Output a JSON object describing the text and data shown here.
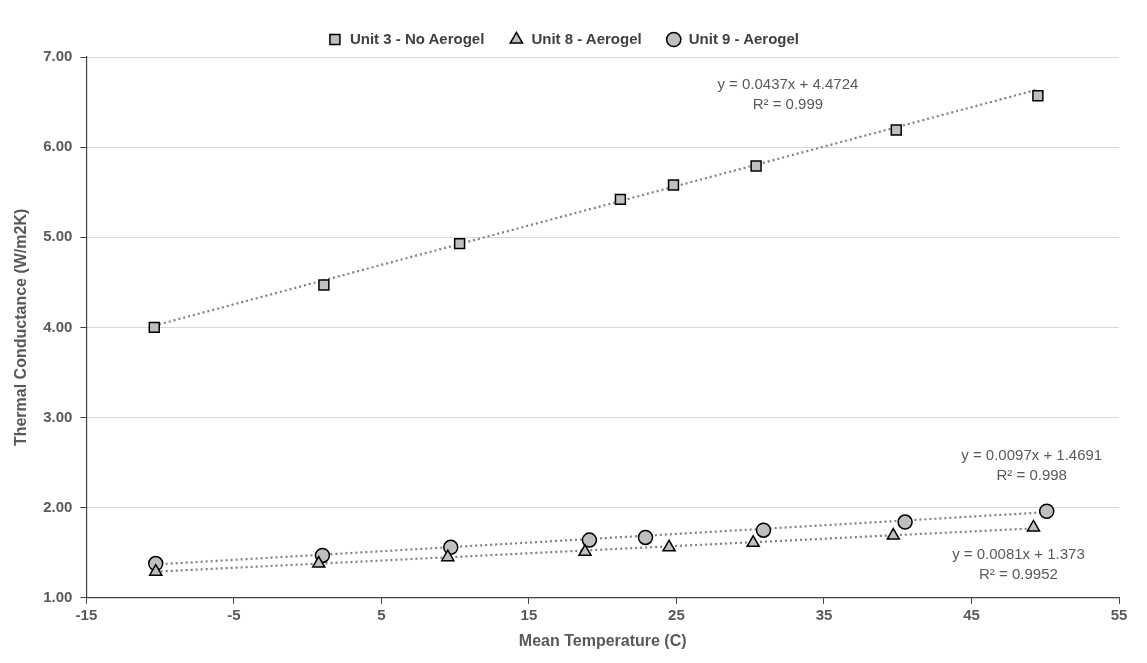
{
  "chart_data": {
    "type": "scatter",
    "xlabel": "Mean Temperature (C)",
    "ylabel": "Thermal Conductance (W/m2K)",
    "xlim": [
      -15,
      55
    ],
    "xticks": [
      -15,
      -5,
      5,
      15,
      25,
      35,
      45,
      55
    ],
    "ylim": [
      1,
      7
    ],
    "yticks": [
      {
        "value": 1,
        "label": "1.00"
      },
      {
        "value": 2,
        "label": "2.00"
      },
      {
        "value": 3,
        "label": "3.00"
      },
      {
        "value": 4,
        "label": "4.00"
      },
      {
        "value": 5,
        "label": "5.00"
      },
      {
        "value": 6,
        "label": "6.00"
      },
      {
        "value": 7,
        "label": "7.00"
      }
    ],
    "grid": "y",
    "legend": "top",
    "series": [
      {
        "name": "Unit 3 - No Aerogel",
        "type": "scatter",
        "marker": "square",
        "color": "#bfbfbf",
        "x": [
          -10.4,
          1.1,
          10.3,
          21.2,
          24.8,
          30.4,
          39.9,
          49.5
        ],
        "values": [
          4.0,
          4.47,
          4.93,
          5.42,
          5.58,
          5.79,
          6.19,
          6.57
        ]
      },
      {
        "name": "Unit 8 - Aerogel",
        "type": "scatter",
        "marker": "triangle",
        "color": "#bfbfbf",
        "x": [
          -10.3,
          0.75,
          9.5,
          18.8,
          24.5,
          30.2,
          39.7,
          49.2
        ],
        "values": [
          1.29,
          1.38,
          1.45,
          1.51,
          1.56,
          1.61,
          1.69,
          1.78
        ]
      },
      {
        "name": "Unit 9 - Aerogel",
        "type": "scatter",
        "marker": "circle",
        "color": "#bfbfbf",
        "x": [
          -10.3,
          1.0,
          9.7,
          19.1,
          22.9,
          30.9,
          40.5,
          50.1
        ],
        "values": [
          1.38,
          1.47,
          1.56,
          1.64,
          1.67,
          1.75,
          1.84,
          1.96
        ]
      },
      {
        "type": "line",
        "marker": "none",
        "line_style": "dotted",
        "color": "#808080",
        "x": [
          -10.4,
          49.5
        ],
        "values": [
          4.02,
          6.64
        ]
      },
      {
        "type": "line",
        "marker": "none",
        "line_style": "dotted",
        "color": "#808080",
        "x": [
          -10.3,
          49.2
        ],
        "values": [
          1.29,
          1.77
        ]
      },
      {
        "type": "line",
        "marker": "none",
        "line_style": "dotted",
        "color": "#808080",
        "x": [
          -10.3,
          50.1
        ],
        "values": [
          1.37,
          1.95
        ]
      }
    ],
    "annotations": [
      "y = 0.0437x + 4.4724",
      "R² = 0.999",
      "y = 0.0081x + 1.373",
      "R² = 0.9952",
      "y = 0.0097x + 1.4691",
      "R² = 0.998"
    ]
  }
}
